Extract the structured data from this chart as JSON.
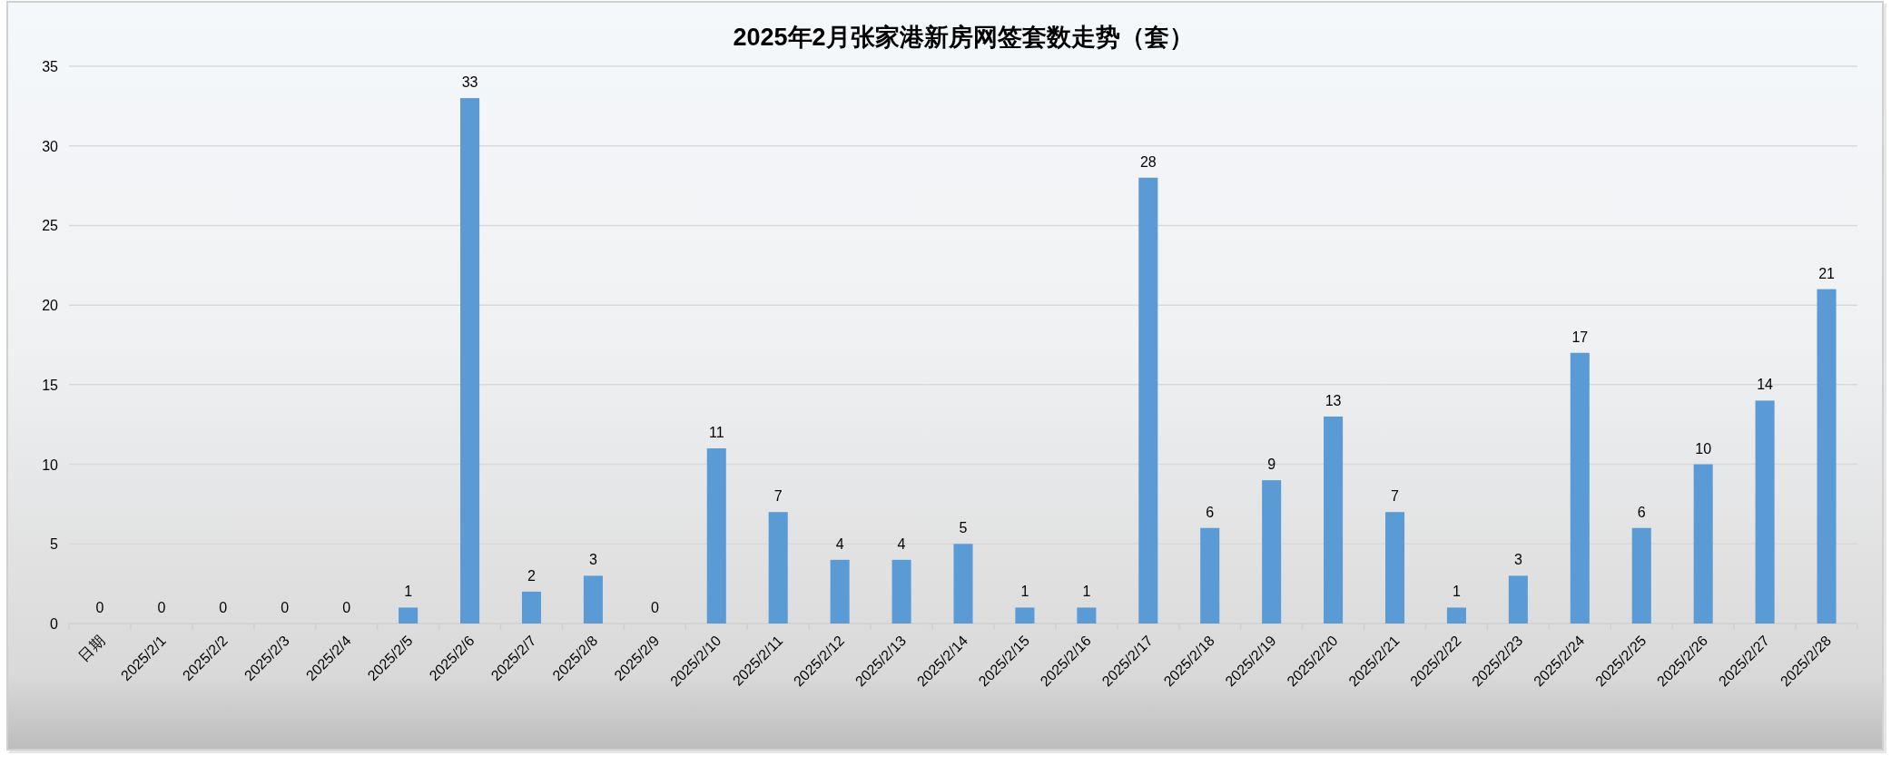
{
  "chart_data": {
    "type": "bar",
    "title": "2025年2月张家港新房网签套数走势（套）",
    "categories": [
      "日期",
      "2025/2/1",
      "2025/2/2",
      "2025/2/3",
      "2025/2/4",
      "2025/2/5",
      "2025/2/6",
      "2025/2/7",
      "2025/2/8",
      "2025/2/9",
      "2025/2/10",
      "2025/2/11",
      "2025/2/12",
      "2025/2/13",
      "2025/2/14",
      "2025/2/15",
      "2025/2/16",
      "2025/2/17",
      "2025/2/18",
      "2025/2/19",
      "2025/2/20",
      "2025/2/21",
      "2025/2/22",
      "2025/2/23",
      "2025/2/24",
      "2025/2/25",
      "2025/2/26",
      "2025/2/27",
      "2025/2/28"
    ],
    "values": [
      0,
      0,
      0,
      0,
      0,
      1,
      33,
      2,
      3,
      0,
      11,
      7,
      4,
      4,
      5,
      1,
      1,
      28,
      6,
      9,
      13,
      7,
      1,
      3,
      17,
      6,
      10,
      14,
      21
    ],
    "color": "#5b9bd5",
    "ylim": [
      0,
      35
    ],
    "yticks": [
      0,
      5,
      10,
      15,
      20,
      25,
      30,
      35
    ],
    "grid": "y",
    "data_labels": true
  }
}
